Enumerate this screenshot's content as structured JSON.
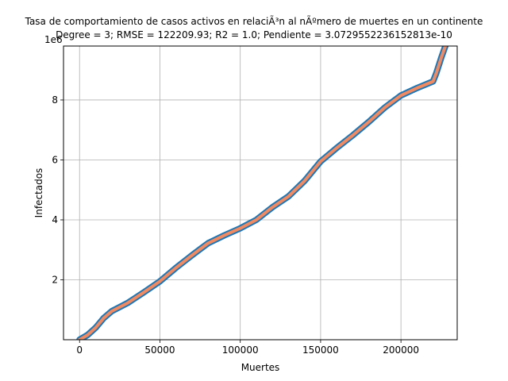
{
  "chart_data": {
    "type": "line",
    "title_line1": "Tasa de comportamiento de casos activos en relaciÃ³n al nÃºmero de muertes en un continente",
    "title_line2": "Degree = 3; RMSE = 122209.93; R2 = 1.0; Pendiente = 3.0729552236152813e-10",
    "xlabel": "Muertes",
    "ylabel": "Infectados",
    "y_offset_label": "1e6",
    "xlim": [
      -10000,
      235000
    ],
    "ylim": [
      0,
      9800000
    ],
    "xticks": [
      {
        "value": 0,
        "label": "0"
      },
      {
        "value": 50000,
        "label": "50000"
      },
      {
        "value": 100000,
        "label": "100000"
      },
      {
        "value": 150000,
        "label": "150000"
      },
      {
        "value": 200000,
        "label": "200000"
      }
    ],
    "yticks": [
      {
        "value": 2000000,
        "label": "2"
      },
      {
        "value": 4000000,
        "label": "4"
      },
      {
        "value": 6000000,
        "label": "6"
      },
      {
        "value": 8000000,
        "label": "8"
      }
    ],
    "grid": true,
    "series": [
      {
        "color": "#1f77b4",
        "x": [
          0,
          5000,
          10000,
          15000,
          20000,
          30000,
          40000,
          50000,
          60000,
          70000,
          80000,
          90000,
          100000,
          110000,
          120000,
          130000,
          140000,
          150000,
          160000,
          170000,
          180000,
          190000,
          200000,
          210000,
          220000,
          222000,
          225000,
          228000
        ],
        "y": [
          0,
          160000,
          400000,
          720000,
          950000,
          1230000,
          1580000,
          1950000,
          2400000,
          2820000,
          3220000,
          3480000,
          3720000,
          4000000,
          4420000,
          4780000,
          5300000,
          5950000,
          6400000,
          6820000,
          7270000,
          7750000,
          8150000,
          8400000,
          8620000,
          8900000,
          9400000,
          9850000
        ]
      },
      {
        "color": "#f08a62",
        "x": [
          0,
          5000,
          10000,
          15000,
          20000,
          30000,
          40000,
          50000,
          60000,
          70000,
          80000,
          90000,
          100000,
          110000,
          120000,
          130000,
          140000,
          150000,
          160000,
          170000,
          180000,
          190000,
          200000,
          210000,
          220000,
          222000,
          225000,
          228000
        ],
        "y": [
          0,
          160000,
          400000,
          720000,
          950000,
          1230000,
          1580000,
          1950000,
          2400000,
          2820000,
          3220000,
          3480000,
          3720000,
          4000000,
          4420000,
          4780000,
          5300000,
          5950000,
          6400000,
          6820000,
          7270000,
          7750000,
          8150000,
          8400000,
          8620000,
          8900000,
          9400000,
          9850000
        ]
      }
    ]
  }
}
